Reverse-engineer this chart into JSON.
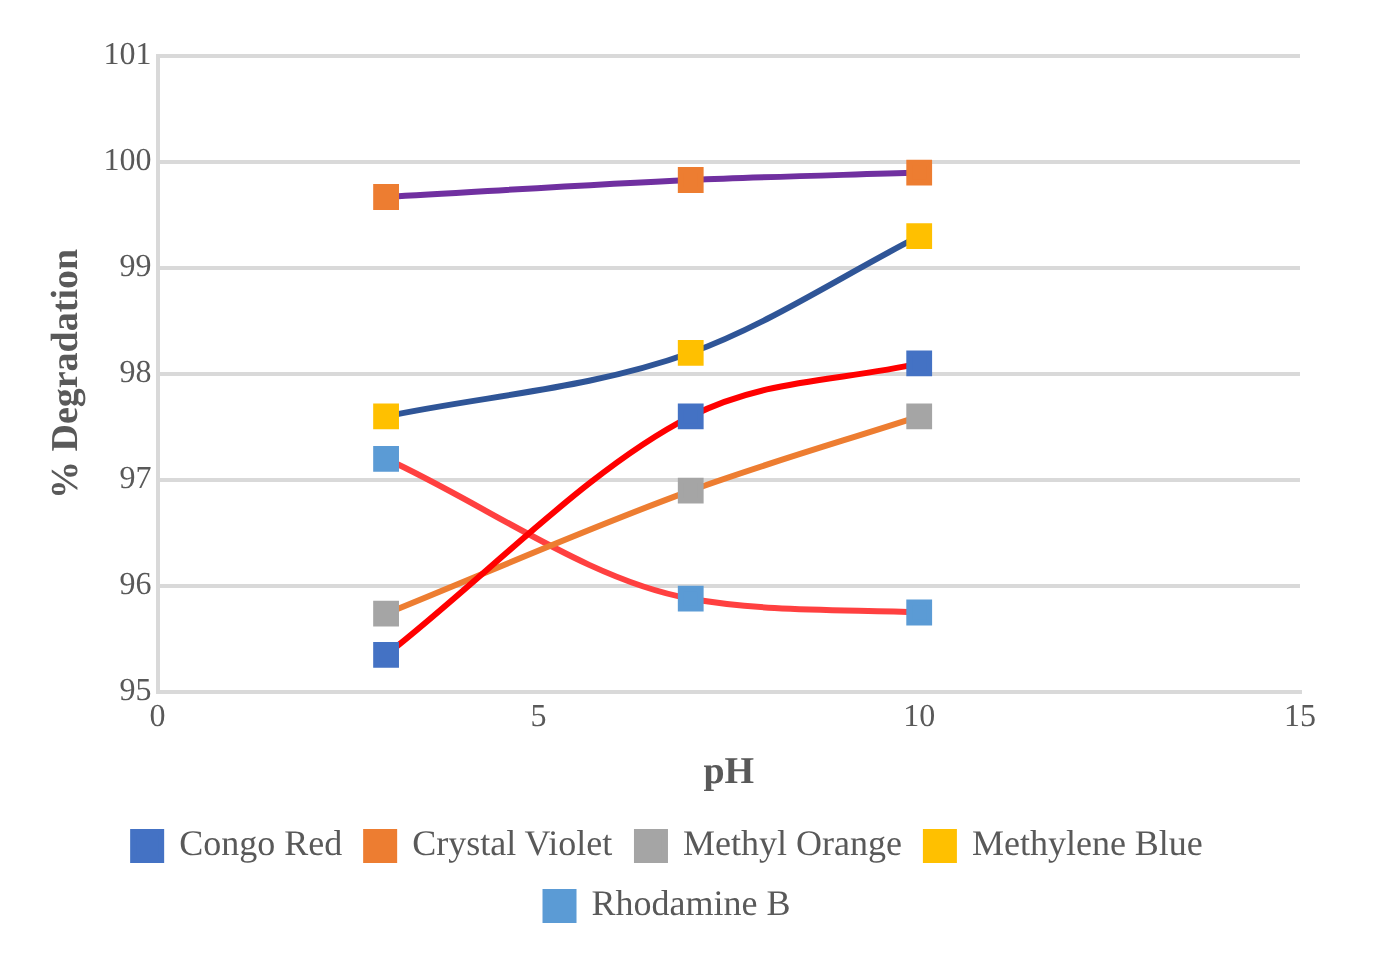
{
  "chart_data": {
    "type": "line",
    "xlabel": "pH",
    "ylabel": "% Degradation",
    "x": [
      3,
      7,
      10
    ],
    "xlim": [
      0,
      15
    ],
    "xticks": [
      0,
      5,
      10,
      15
    ],
    "ylim": [
      95,
      101
    ],
    "yticks": [
      95,
      96,
      97,
      98,
      99,
      100,
      101
    ],
    "grid": "y",
    "legend": "bottom",
    "marker": "square",
    "line_style": "solid",
    "series": [
      {
        "name": "Congo Red",
        "color": "#ff0000",
        "colors": [
          "#4472c4",
          "#4472c4",
          "#4472c4"
        ],
        "values": [
          95.35,
          97.6,
          98.1
        ]
      },
      {
        "name": "Crystal Violet",
        "color": "#7030a0",
        "colors": [
          "#ed7d31",
          "#ed7d31",
          "#ed7d31"
        ],
        "values": [
          99.67,
          99.83,
          99.9
        ]
      },
      {
        "name": "Methyl Orange",
        "color": "#ed7d31",
        "colors": [
          "#a5a5a5",
          "#a5a5a5",
          "#a5a5a5"
        ],
        "values": [
          95.74,
          96.9,
          97.6
        ]
      },
      {
        "name": "Methylene Blue",
        "color": "#2f5597",
        "colors": [
          "#ffc000",
          "#ffc000",
          "#ffc000"
        ],
        "values": [
          97.6,
          98.2,
          99.3
        ]
      },
      {
        "name": "Rhodamine B",
        "color": "#ff4040",
        "colors": [
          "#5b9bd5",
          "#5b9bd5",
          "#5b9bd5"
        ],
        "values": [
          97.2,
          95.88,
          95.75
        ]
      }
    ]
  }
}
